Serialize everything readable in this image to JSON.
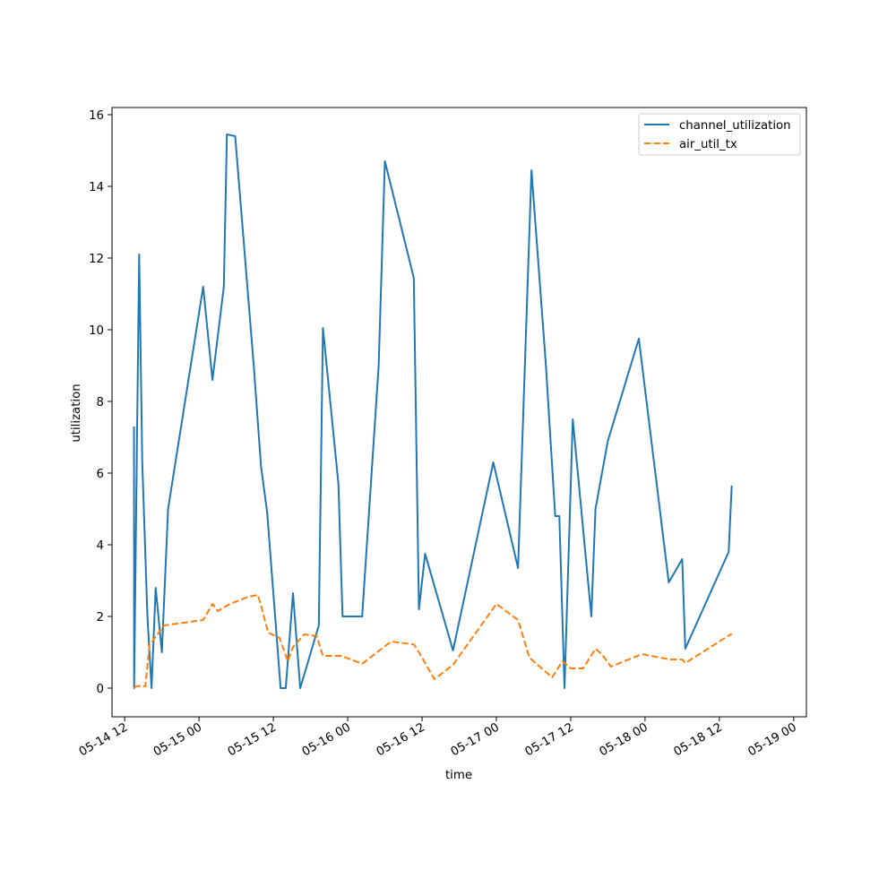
{
  "chart_data": {
    "type": "line",
    "xlabel": "time",
    "ylabel": "utilization",
    "x_axis": "datetime",
    "x_range": [
      "2024-05-14T12:00",
      "2024-05-19T00:00"
    ],
    "ylim": [
      -0.8,
      16.2
    ],
    "x_ticks": [
      {
        "t": "2024-05-14T12:00",
        "label": "05-14 12"
      },
      {
        "t": "2024-05-15T00:00",
        "label": "05-15 00"
      },
      {
        "t": "2024-05-15T12:00",
        "label": "05-15 12"
      },
      {
        "t": "2024-05-16T00:00",
        "label": "05-16 00"
      },
      {
        "t": "2024-05-16T12:00",
        "label": "05-16 12"
      },
      {
        "t": "2024-05-17T00:00",
        "label": "05-17 00"
      },
      {
        "t": "2024-05-17T12:00",
        "label": "05-17 12"
      },
      {
        "t": "2024-05-18T00:00",
        "label": "05-18 00"
      },
      {
        "t": "2024-05-18T12:00",
        "label": "05-18 12"
      },
      {
        "t": "2024-05-19T00:00",
        "label": "05-19 00"
      }
    ],
    "y_ticks": [
      0,
      2,
      4,
      6,
      8,
      10,
      12,
      14,
      16
    ],
    "grid": false,
    "legend": "top-right",
    "series": [
      {
        "name": "channel_utilization",
        "color": "#1f77b4",
        "dash": "solid",
        "points": [
          [
            "2024-05-14T13:30",
            7.3
          ],
          [
            "2024-05-14T13:31",
            0.0
          ],
          [
            "2024-05-14T14:20",
            12.1
          ],
          [
            "2024-05-14T14:50",
            6.3
          ],
          [
            "2024-05-14T15:40",
            2.0
          ],
          [
            "2024-05-14T16:20",
            0.0
          ],
          [
            "2024-05-14T17:00",
            2.8
          ],
          [
            "2024-05-14T18:00",
            1.0
          ],
          [
            "2024-05-14T19:00",
            5.0
          ],
          [
            "2024-05-15T00:40",
            11.2
          ],
          [
            "2024-05-15T02:10",
            8.6
          ],
          [
            "2024-05-15T04:00",
            11.2
          ],
          [
            "2024-05-15T04:30",
            15.45
          ],
          [
            "2024-05-15T05:50",
            15.4
          ],
          [
            "2024-05-15T08:50",
            9.0
          ],
          [
            "2024-05-15T10:00",
            6.2
          ],
          [
            "2024-05-15T11:00",
            4.9
          ],
          [
            "2024-05-15T13:10",
            0.0
          ],
          [
            "2024-05-15T14:00",
            0.0
          ],
          [
            "2024-05-15T15:10",
            2.65
          ],
          [
            "2024-05-15T16:20",
            0.0
          ],
          [
            "2024-05-15T19:20",
            1.75
          ],
          [
            "2024-05-15T20:00",
            10.05
          ],
          [
            "2024-05-15T22:30",
            5.7
          ],
          [
            "2024-05-15T23:10",
            2.0
          ],
          [
            "2024-05-16T02:20",
            2.0
          ],
          [
            "2024-05-16T05:00",
            9.0
          ],
          [
            "2024-05-16T06:00",
            14.7
          ],
          [
            "2024-05-16T10:40",
            11.45
          ],
          [
            "2024-05-16T11:30",
            2.2
          ],
          [
            "2024-05-16T12:30",
            3.75
          ],
          [
            "2024-05-16T17:00",
            1.05
          ],
          [
            "2024-05-16T23:30",
            6.3
          ],
          [
            "2024-05-17T03:30",
            3.35
          ],
          [
            "2024-05-17T05:40",
            14.45
          ],
          [
            "2024-05-17T08:00",
            9.0
          ],
          [
            "2024-05-17T09:30",
            4.8
          ],
          [
            "2024-05-17T10:10",
            4.8
          ],
          [
            "2024-05-17T11:00",
            0.0
          ],
          [
            "2024-05-17T12:20",
            7.5
          ],
          [
            "2024-05-17T15:20",
            2.0
          ],
          [
            "2024-05-17T16:00",
            5.0
          ],
          [
            "2024-05-17T18:00",
            6.9
          ],
          [
            "2024-05-17T23:00",
            9.75
          ],
          [
            "2024-05-18T03:50",
            2.95
          ],
          [
            "2024-05-18T06:00",
            3.6
          ],
          [
            "2024-05-18T06:30",
            1.1
          ],
          [
            "2024-05-18T13:30",
            3.8
          ],
          [
            "2024-05-18T14:00",
            5.65
          ]
        ]
      },
      {
        "name": "air_util_tx",
        "color": "#ff7f0e",
        "dash": "dashed",
        "points": [
          [
            "2024-05-14T13:30",
            0.02
          ],
          [
            "2024-05-14T14:00",
            0.06
          ],
          [
            "2024-05-14T15:20",
            0.05
          ],
          [
            "2024-05-14T16:00",
            1.2
          ],
          [
            "2024-05-14T17:30",
            1.55
          ],
          [
            "2024-05-14T18:20",
            1.75
          ],
          [
            "2024-05-15T00:40",
            1.9
          ],
          [
            "2024-05-15T02:10",
            2.35
          ],
          [
            "2024-05-15T03:00",
            2.15
          ],
          [
            "2024-05-15T05:00",
            2.35
          ],
          [
            "2024-05-15T08:00",
            2.55
          ],
          [
            "2024-05-15T09:30",
            2.6
          ],
          [
            "2024-05-15T10:00",
            2.3
          ],
          [
            "2024-05-15T11:10",
            1.55
          ],
          [
            "2024-05-15T13:00",
            1.4
          ],
          [
            "2024-05-15T14:20",
            0.75
          ],
          [
            "2024-05-15T15:10",
            1.15
          ],
          [
            "2024-05-15T17:00",
            1.5
          ],
          [
            "2024-05-15T19:00",
            1.45
          ],
          [
            "2024-05-15T20:00",
            0.9
          ],
          [
            "2024-05-15T23:00",
            0.9
          ],
          [
            "2024-05-16T02:20",
            0.68
          ],
          [
            "2024-05-16T07:00",
            1.3
          ],
          [
            "2024-05-16T10:40",
            1.22
          ],
          [
            "2024-05-16T11:30",
            1.0
          ],
          [
            "2024-05-16T14:00",
            0.25
          ],
          [
            "2024-05-16T17:00",
            0.65
          ],
          [
            "2024-05-17T00:00",
            2.35
          ],
          [
            "2024-05-17T03:30",
            1.9
          ],
          [
            "2024-05-17T05:20",
            0.85
          ],
          [
            "2024-05-17T09:00",
            0.3
          ],
          [
            "2024-05-17T10:40",
            0.75
          ],
          [
            "2024-05-17T12:00",
            0.55
          ],
          [
            "2024-05-17T14:00",
            0.55
          ],
          [
            "2024-05-17T16:00",
            1.1
          ],
          [
            "2024-05-17T17:00",
            0.95
          ],
          [
            "2024-05-17T18:30",
            0.6
          ],
          [
            "2024-05-17T23:30",
            0.95
          ],
          [
            "2024-05-18T04:00",
            0.8
          ],
          [
            "2024-05-18T06:00",
            0.8
          ],
          [
            "2024-05-18T06:30",
            0.7
          ],
          [
            "2024-05-18T14:00",
            1.52
          ]
        ]
      }
    ]
  }
}
